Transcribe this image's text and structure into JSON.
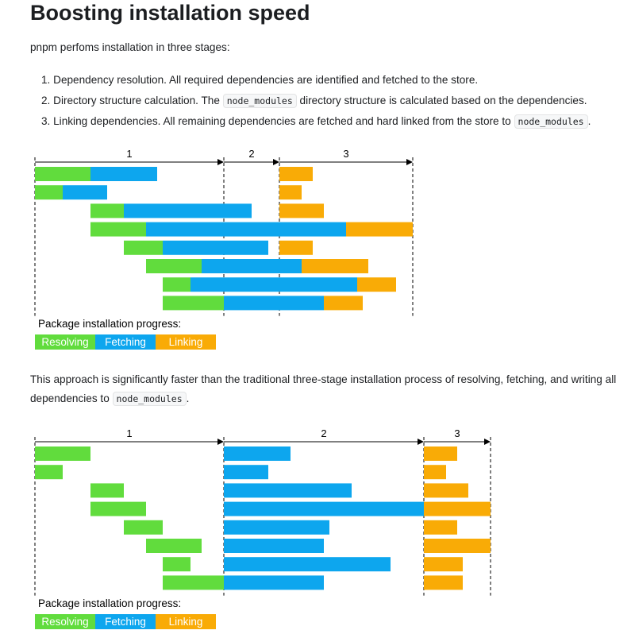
{
  "title": "Boosting installation speed",
  "intro": "pnpm perfoms installation in three stages:",
  "steps": [
    {
      "num": "1.",
      "text": "Dependency resolution. All required dependencies are identified and fetched to the store.",
      "code": "",
      "after": ""
    },
    {
      "num": "2.",
      "text": "Directory structure calculation. The ",
      "code": "node_modules",
      "after": " directory structure is calculated based on the dependencies."
    },
    {
      "num": "3.",
      "text": "Linking dependencies. All remaining dependencies are fetched and hard linked from the store to ",
      "code": "node_modules",
      "after": "."
    }
  ],
  "comparison": {
    "text": "This approach is significantly faster than the traditional three-stage installation process of resolving, fetching, and writing all dependencies to ",
    "code": "node_modules",
    "after": "."
  },
  "colors": {
    "resolving": "#61dc3d",
    "fetching": "#0da6ee",
    "linking": "#f9ab06"
  },
  "diagrams": [
    {
      "stage_labels": [
        "1",
        "2",
        "3"
      ],
      "legend_title": "Package installation progress:",
      "legend": [
        "Resolving",
        "Fetching",
        "Linking"
      ],
      "rows": [
        {
          "resolving": [
            0,
            10
          ],
          "fetching": [
            10,
            22
          ],
          "linking": [
            44,
            50
          ]
        },
        {
          "resolving": [
            0,
            5
          ],
          "fetching": [
            5,
            13
          ],
          "linking": [
            44,
            48
          ]
        },
        {
          "resolving": [
            10,
            16
          ],
          "fetching": [
            16,
            39
          ],
          "linking": [
            44,
            52
          ]
        },
        {
          "resolving": [
            10,
            20
          ],
          "fetching": [
            20,
            56
          ],
          "linking": [
            56,
            68
          ]
        },
        {
          "resolving": [
            16,
            23
          ],
          "fetching": [
            23,
            42
          ],
          "linking": [
            44,
            50
          ]
        },
        {
          "resolving": [
            20,
            30
          ],
          "fetching": [
            30,
            48
          ],
          "linking": [
            48,
            60
          ]
        },
        {
          "resolving": [
            23,
            28
          ],
          "fetching": [
            28,
            58
          ],
          "linking": [
            58,
            65
          ]
        },
        {
          "resolving": [
            23,
            34
          ],
          "fetching": [
            34,
            52
          ],
          "linking": [
            52,
            59
          ]
        }
      ]
    },
    {
      "stage_labels": [
        "1",
        "2",
        "3"
      ],
      "legend_title": "Package installation progress:",
      "legend": [
        "Resolving",
        "Fetching",
        "Linking"
      ],
      "rows": [
        {
          "resolving": [
            0,
            10
          ],
          "fetching": [
            34,
            46
          ],
          "linking": [
            70,
            76
          ]
        },
        {
          "resolving": [
            0,
            5
          ],
          "fetching": [
            34,
            42
          ],
          "linking": [
            70,
            74
          ]
        },
        {
          "resolving": [
            10,
            16
          ],
          "fetching": [
            34,
            57
          ],
          "linking": [
            70,
            78
          ]
        },
        {
          "resolving": [
            10,
            20
          ],
          "fetching": [
            34,
            70
          ],
          "linking": [
            70,
            82
          ]
        },
        {
          "resolving": [
            16,
            23
          ],
          "fetching": [
            34,
            53
          ],
          "linking": [
            70,
            76
          ]
        },
        {
          "resolving": [
            20,
            30
          ],
          "fetching": [
            34,
            52
          ],
          "linking": [
            70,
            82
          ]
        },
        {
          "resolving": [
            23,
            28
          ],
          "fetching": [
            34,
            64
          ],
          "linking": [
            70,
            77
          ]
        },
        {
          "resolving": [
            23,
            34
          ],
          "fetching": [
            34,
            52
          ],
          "linking": [
            70,
            77
          ]
        }
      ]
    }
  ]
}
